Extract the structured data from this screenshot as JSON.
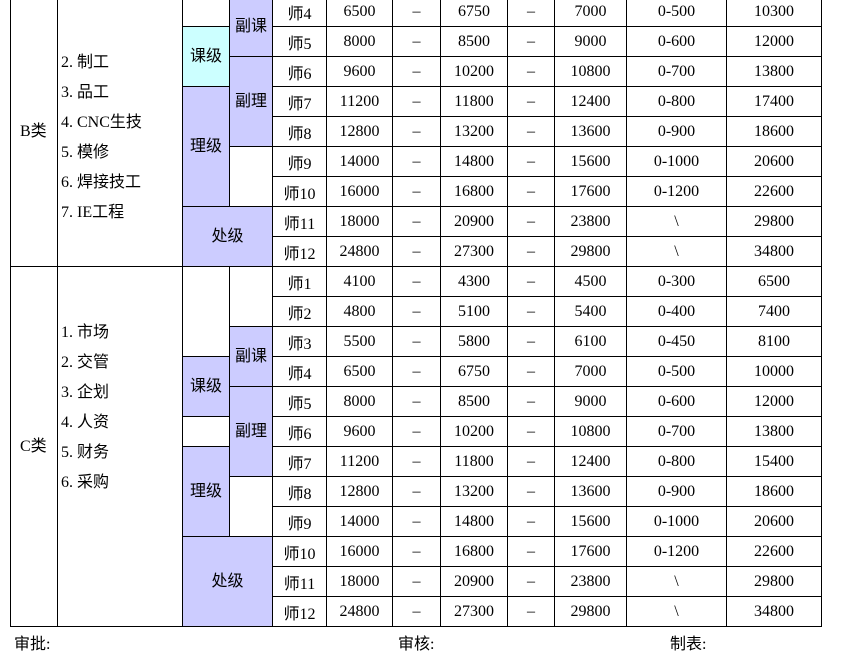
{
  "sections": [
    {
      "category": "B类",
      "departments": [
        "2. 制工",
        "3. 品工",
        "4. CNC生技",
        "5. 模修",
        "6. 焊接技工",
        "7. IE工程"
      ],
      "levels": [
        "副课",
        "课级",
        "副理",
        "理级",
        "处级"
      ],
      "rows": [
        [
          "师4",
          6500,
          "–",
          6750,
          "–",
          7000,
          "0-500",
          10300
        ],
        [
          "师5",
          8000,
          "–",
          8500,
          "–",
          9000,
          "0-600",
          12000
        ],
        [
          "师6",
          9600,
          "–",
          10200,
          "–",
          10800,
          "0-700",
          13800
        ],
        [
          "师7",
          11200,
          "–",
          11800,
          "–",
          12400,
          "0-800",
          17400
        ],
        [
          "师8",
          12800,
          "–",
          13200,
          "–",
          13600,
          "0-900",
          18600
        ],
        [
          "师9",
          14000,
          "–",
          14800,
          "–",
          15600,
          "0-1000",
          20600
        ],
        [
          "师10",
          16000,
          "–",
          16800,
          "–",
          17600,
          "0-1200",
          22600
        ],
        [
          "师11",
          18000,
          "–",
          20900,
          "–",
          23800,
          "\\",
          29800
        ],
        [
          "师12",
          24800,
          "–",
          27300,
          "–",
          29800,
          "\\",
          34800
        ]
      ]
    },
    {
      "category": "C类",
      "departments": [
        "1. 市场",
        "2. 交管",
        "3. 企划",
        "4. 人资",
        "5. 财务",
        "6. 采购"
      ],
      "levels": [
        "副课",
        "课级",
        "副理",
        "理级",
        "处级"
      ],
      "rows": [
        [
          "师1",
          4100,
          "–",
          4300,
          "–",
          4500,
          "0-300",
          6500
        ],
        [
          "师2",
          4800,
          "–",
          5100,
          "–",
          5400,
          "0-400",
          7400
        ],
        [
          "师3",
          5500,
          "–",
          5800,
          "–",
          6100,
          "0-450",
          8100
        ],
        [
          "师4",
          6500,
          "–",
          6750,
          "–",
          7000,
          "0-500",
          10000
        ],
        [
          "师5",
          8000,
          "–",
          8500,
          "–",
          9000,
          "0-600",
          12000
        ],
        [
          "师6",
          9600,
          "–",
          10200,
          "–",
          10800,
          "0-700",
          13800
        ],
        [
          "师7",
          11200,
          "–",
          11800,
          "–",
          12400,
          "0-800",
          15400
        ],
        [
          "师8",
          12800,
          "–",
          13200,
          "–",
          13600,
          "0-900",
          18600
        ],
        [
          "师9",
          14000,
          "–",
          14800,
          "–",
          15600,
          "0-1000",
          20600
        ],
        [
          "师10",
          16000,
          "–",
          16800,
          "–",
          17600,
          "0-1200",
          22600
        ],
        [
          "师11",
          18000,
          "–",
          20900,
          "–",
          23800,
          "\\",
          29800
        ],
        [
          "师12",
          24800,
          "–",
          27300,
          "–",
          29800,
          "\\",
          34800
        ]
      ]
    }
  ],
  "footer": [
    "审批:",
    "审核:",
    "制表:"
  ]
}
